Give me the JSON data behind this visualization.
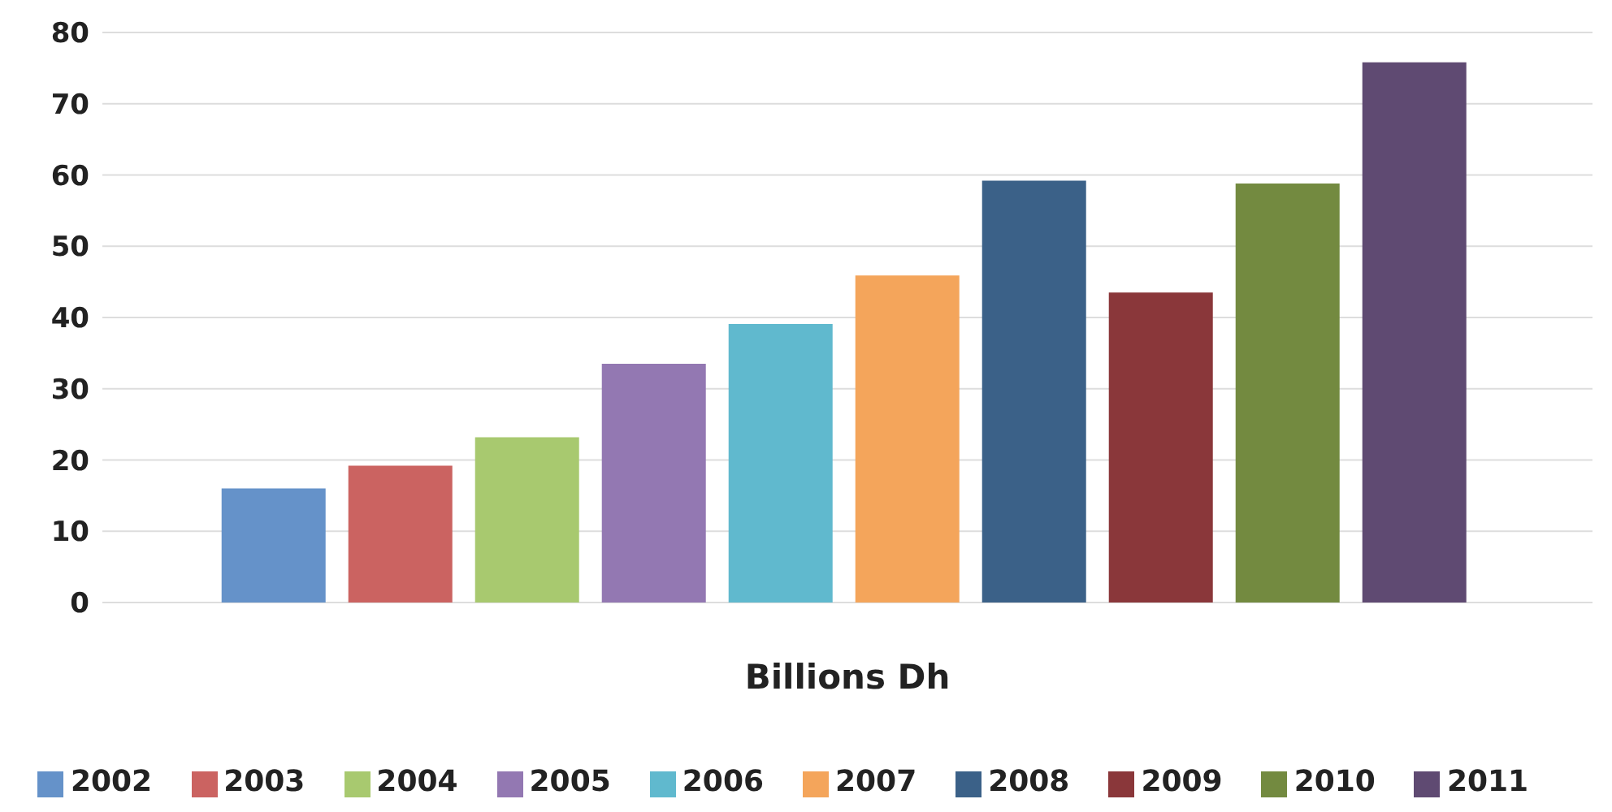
{
  "chart_data": {
    "type": "bar",
    "xlabel": "Billions Dh",
    "categories": [
      null
    ],
    "series": [
      {
        "name": "2002",
        "color": "#6592c9",
        "values": [
          16
        ]
      },
      {
        "name": "2003",
        "color": "#cb6361",
        "values": [
          19.2
        ]
      },
      {
        "name": "2004",
        "color": "#a8c96f",
        "values": [
          23.2
        ]
      },
      {
        "name": "2005",
        "color": "#9378b2",
        "values": [
          33.5
        ]
      },
      {
        "name": "2006",
        "color": "#60b9ce",
        "values": [
          39.1
        ]
      },
      {
        "name": "2007",
        "color": "#f4a55b",
        "values": [
          45.9
        ]
      },
      {
        "name": "2008",
        "color": "#3b6188",
        "values": [
          59.2
        ]
      },
      {
        "name": "2009",
        "color": "#8a373a",
        "values": [
          43.5
        ]
      },
      {
        "name": "2010",
        "color": "#738a40",
        "values": [
          58.8
        ]
      },
      {
        "name": "2011",
        "color": "#5f4a72",
        "values": [
          75.8
        ]
      }
    ],
    "ylim": [
      0,
      80
    ],
    "yticks": [
      0,
      10,
      20,
      30,
      40,
      50,
      60,
      70,
      80
    ],
    "grid": "y",
    "legend": "bottom"
  }
}
